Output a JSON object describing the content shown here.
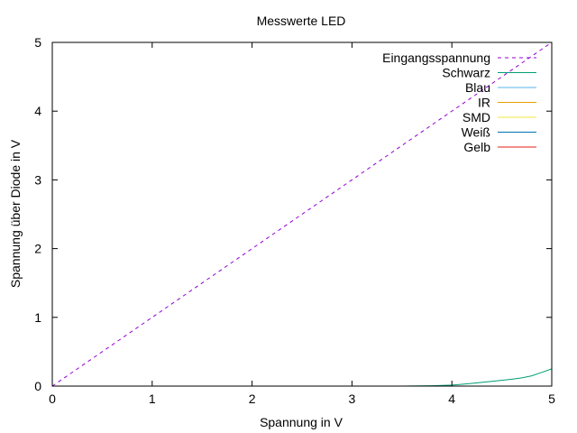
{
  "chart_data": {
    "type": "line",
    "title": "Messwerte LED",
    "xlabel": "Spannung in V",
    "ylabel": "Spannung über Diode in V",
    "xlim": [
      0,
      5
    ],
    "ylim": [
      0,
      5
    ],
    "xticks": [
      0,
      1,
      2,
      3,
      4,
      5
    ],
    "yticks": [
      0,
      1,
      2,
      3,
      4,
      5
    ],
    "grid": false,
    "legend_position": "top-right",
    "series": [
      {
        "name": "Eingangsspannung",
        "color": "#9400d3",
        "dash": true,
        "x": [
          0,
          5
        ],
        "y": [
          0,
          5
        ]
      },
      {
        "name": "Schwarz",
        "color": "#009e73",
        "dash": false,
        "x": [
          3.5,
          3.8,
          4.0,
          4.2,
          4.4,
          4.6,
          4.7,
          4.8,
          4.9,
          5.0
        ],
        "y": [
          0.0,
          0.005,
          0.015,
          0.04,
          0.07,
          0.1,
          0.12,
          0.15,
          0.2,
          0.25
        ]
      },
      {
        "name": "Blau",
        "color": "#56b4e9",
        "dash": false,
        "x": [],
        "y": []
      },
      {
        "name": "IR",
        "color": "#e69f00",
        "dash": false,
        "x": [],
        "y": []
      },
      {
        "name": "SMD",
        "color": "#f0e442",
        "dash": false,
        "x": [],
        "y": []
      },
      {
        "name": "Weiß",
        "color": "#0072b2",
        "dash": false,
        "x": [],
        "y": []
      },
      {
        "name": "Gelb",
        "color": "#e51e10",
        "dash": false,
        "x": [],
        "y": []
      }
    ]
  }
}
